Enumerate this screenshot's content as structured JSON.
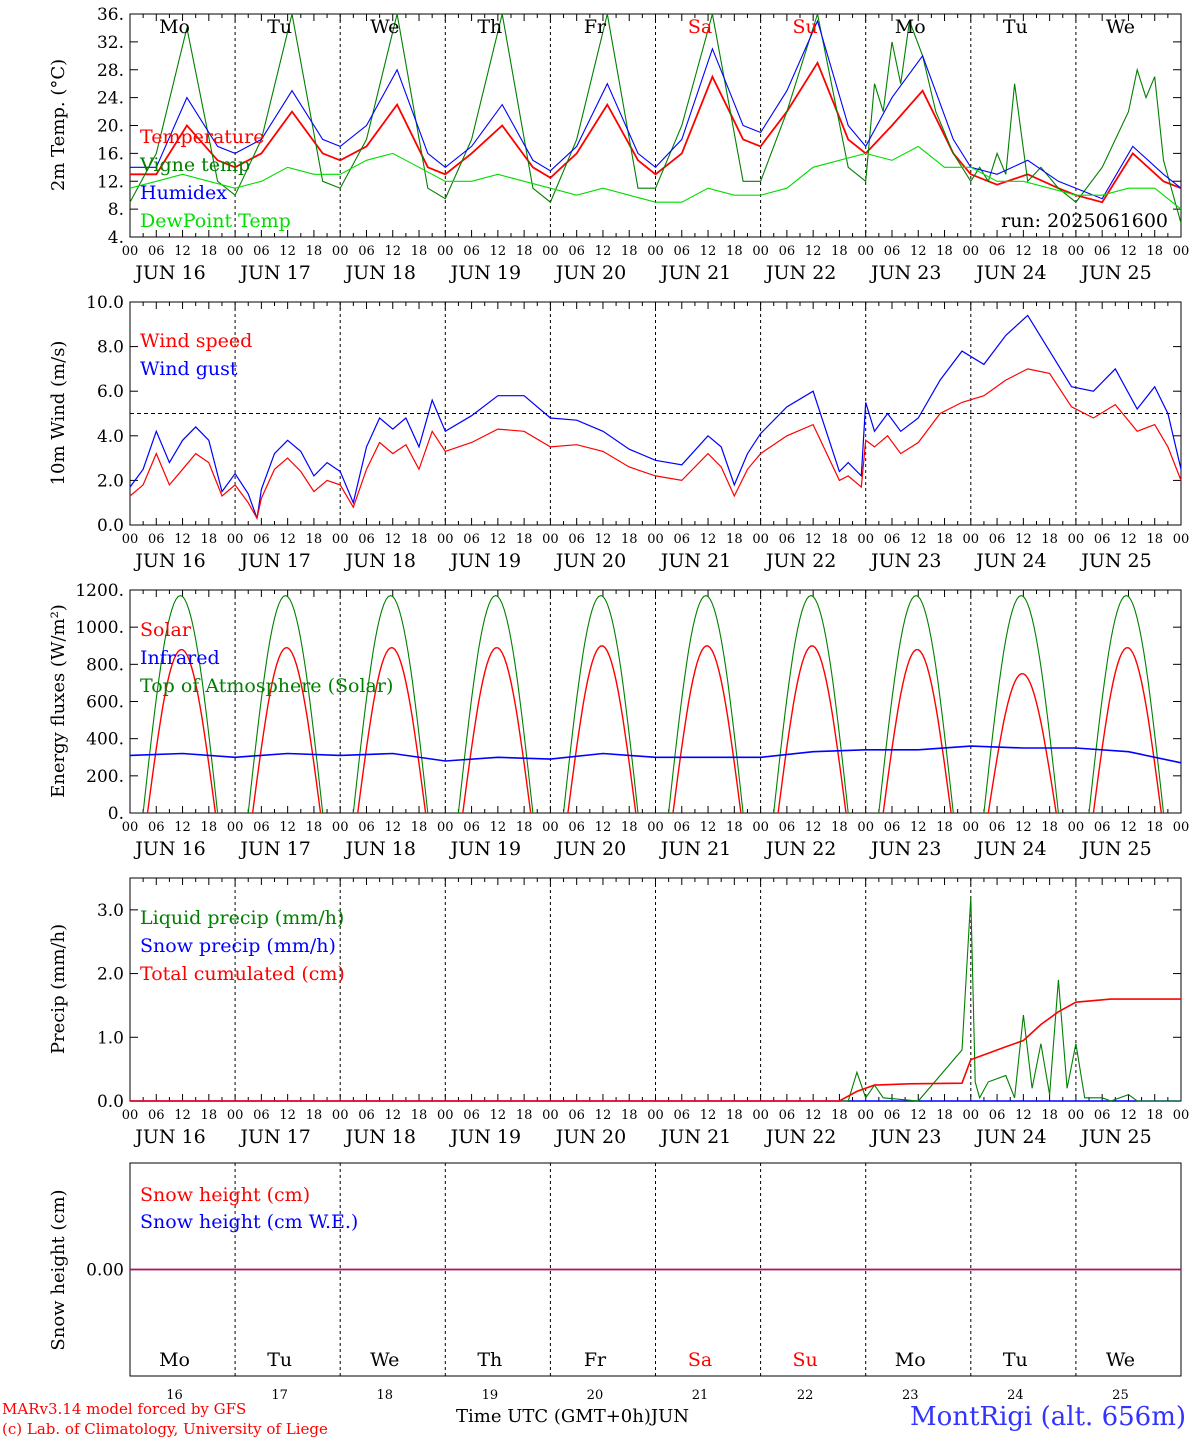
{
  "credits": {
    "line1": "MARv3.14 model forced by GFS",
    "line2": "(c) Lab. of Climatology, University of Liege",
    "xtitle": "Time UTC (GMT+0h)",
    "month": "JUN",
    "station": "MontRigi (alt. 656m)"
  },
  "days": {
    "weekday_labels": [
      "Mo",
      "Tu",
      "We",
      "Th",
      "Fr",
      "Sa",
      "Su",
      "Mo",
      "Tu",
      "We"
    ],
    "weekend_flags": [
      false,
      false,
      false,
      false,
      false,
      true,
      true,
      false,
      false,
      false
    ],
    "date_labels": [
      "JUN 16",
      "JUN 17",
      "JUN 18",
      "JUN 19",
      "JUN 20",
      "JUN 21",
      "JUN 22",
      "JUN 23",
      "JUN 24",
      "JUN 25"
    ],
    "day_numbers": [
      "16",
      "17",
      "18",
      "19",
      "20",
      "21",
      "22",
      "23",
      "24",
      "25"
    ],
    "hour_ticks": [
      "00",
      "06",
      "12",
      "18"
    ],
    "final_tick": "00"
  },
  "colors": {
    "red": "#ff0000",
    "blue": "#0000ff",
    "darkgreen": "#008000",
    "lightgreen": "#00dd00",
    "weekend": "#ff0000"
  },
  "chart_data": [
    {
      "type": "line",
      "id": "temp",
      "ylabel": "2m Temp. (°C)",
      "ylim": [
        4,
        36
      ],
      "yticks": [
        "36.",
        "32.",
        "28.",
        "24.",
        "20.",
        "16.",
        "12.",
        "8.",
        "4."
      ],
      "run_label": "run: 2025061600",
      "x_unit": "hours since JUN 16 00 UTC",
      "series": [
        {
          "name": "Temperature",
          "color": "red",
          "x": [
            0,
            6,
            13,
            20,
            24,
            30,
            37,
            44,
            48,
            54,
            61,
            68,
            72,
            78,
            85,
            92,
            96,
            102,
            109,
            116,
            120,
            126,
            133,
            140,
            144,
            150,
            157,
            164,
            168,
            174,
            181,
            188,
            192,
            198,
            205,
            212,
            216,
            222,
            229,
            236,
            240
          ],
          "y": [
            13,
            13,
            20,
            15,
            14,
            16,
            22,
            16,
            15,
            17,
            23,
            14,
            13,
            16,
            20,
            14,
            12.5,
            16,
            23,
            15,
            13,
            16,
            27,
            18,
            17,
            22,
            29,
            18,
            16,
            20,
            25,
            16,
            13,
            11.5,
            13,
            11,
            10,
            9,
            16,
            12,
            11
          ]
        },
        {
          "name": "Vigne temp",
          "color": "darkgreen",
          "x": [
            0,
            6,
            13,
            20,
            24,
            30,
            37,
            44,
            48,
            54,
            61,
            68,
            72,
            78,
            85,
            92,
            96,
            102,
            109,
            116,
            120,
            126,
            133,
            140,
            144,
            150,
            157,
            164,
            168,
            170,
            172,
            174,
            176,
            178,
            181,
            184,
            188,
            192,
            194,
            196,
            198,
            200,
            202,
            205,
            208,
            212,
            216,
            222,
            228,
            230,
            232,
            234,
            236,
            240
          ],
          "y": [
            9,
            16,
            34,
            12,
            10,
            18,
            36,
            12,
            11,
            18,
            36,
            11,
            9.5,
            18,
            36,
            11,
            9,
            18,
            36,
            11,
            11,
            20,
            36,
            12,
            12,
            22,
            36,
            14,
            12,
            26,
            22,
            32,
            26,
            35,
            30,
            22,
            16,
            12,
            14,
            12,
            16,
            13,
            26,
            12,
            14,
            11,
            9,
            14,
            22,
            28,
            24,
            27,
            15,
            6
          ]
        },
        {
          "name": "Humidex",
          "color": "blue",
          "x": [
            0,
            6,
            13,
            20,
            24,
            30,
            37,
            44,
            48,
            54,
            61,
            68,
            72,
            78,
            85,
            92,
            96,
            102,
            109,
            116,
            120,
            126,
            133,
            140,
            144,
            150,
            157,
            164,
            168,
            174,
            181,
            188,
            192,
            198,
            205,
            212,
            216,
            222,
            229,
            236,
            240
          ],
          "y": [
            14,
            14,
            24,
            17,
            16,
            18,
            25,
            18,
            17,
            20,
            28,
            16,
            14,
            17,
            23,
            15,
            13.5,
            17,
            26,
            16,
            14,
            18,
            31,
            20,
            19,
            25,
            35,
            20,
            17,
            24,
            30,
            18,
            14,
            13,
            15,
            12,
            11,
            9.5,
            17,
            13,
            11
          ]
        },
        {
          "name": "DewPoint Temp",
          "color": "lightgreen",
          "x": [
            0,
            6,
            12,
            18,
            24,
            30,
            36,
            42,
            48,
            54,
            60,
            66,
            72,
            78,
            84,
            90,
            96,
            102,
            108,
            114,
            120,
            126,
            132,
            138,
            144,
            150,
            156,
            162,
            168,
            174,
            180,
            186,
            192,
            198,
            204,
            210,
            216,
            222,
            228,
            234,
            240
          ],
          "y": [
            11,
            12,
            13,
            12,
            11,
            12,
            14,
            13,
            13,
            15,
            16,
            14,
            12,
            12,
            13,
            12,
            11,
            10,
            11,
            10,
            9,
            9,
            11,
            10,
            10,
            11,
            14,
            15,
            16,
            15,
            17,
            14,
            14,
            12,
            12,
            11,
            10,
            10,
            11,
            11,
            8
          ]
        }
      ]
    },
    {
      "type": "line",
      "id": "wind",
      "ylabel": "10m Wind (m/s)",
      "ylim": [
        0,
        10
      ],
      "yticks": [
        "10.0",
        "8.0",
        "6.0",
        "4.0",
        "2.0",
        "0.0"
      ],
      "reference_line": 5.0,
      "x_unit": "hours since JUN 16 00 UTC",
      "series": [
        {
          "name": "Wind speed",
          "color": "red",
          "x": [
            0,
            3,
            6,
            9,
            12,
            15,
            18,
            21,
            24,
            27,
            29,
            30,
            33,
            36,
            39,
            42,
            45,
            48,
            51,
            54,
            57,
            60,
            63,
            66,
            69,
            72,
            78,
            84,
            90,
            96,
            102,
            108,
            114,
            120,
            126,
            132,
            135,
            138,
            141,
            144,
            150,
            156,
            162,
            164,
            167,
            168,
            170,
            173,
            176,
            180,
            185,
            190,
            195,
            200,
            205,
            210,
            215,
            220,
            225,
            230,
            234,
            237,
            240
          ],
          "y": [
            1.3,
            1.8,
            3.2,
            1.8,
            2.5,
            3.2,
            2.8,
            1.3,
            1.8,
            1.0,
            0.3,
            1.2,
            2.5,
            3.0,
            2.4,
            1.5,
            2.0,
            1.8,
            0.8,
            2.5,
            3.7,
            3.2,
            3.6,
            2.5,
            4.2,
            3.3,
            3.7,
            4.3,
            4.2,
            3.5,
            3.6,
            3.3,
            2.6,
            2.2,
            2.0,
            3.2,
            2.6,
            1.3,
            2.5,
            3.2,
            4.0,
            4.5,
            2.0,
            2.2,
            1.7,
            3.8,
            3.5,
            4.0,
            3.2,
            3.7,
            5.0,
            5.5,
            5.8,
            6.5,
            7.0,
            6.8,
            5.3,
            4.8,
            5.4,
            4.2,
            4.5,
            3.5,
            2.0
          ]
        },
        {
          "name": "Wind gust",
          "color": "blue",
          "x": [
            0,
            3,
            6,
            9,
            12,
            15,
            18,
            21,
            24,
            27,
            29,
            30,
            33,
            36,
            39,
            42,
            45,
            48,
            51,
            54,
            57,
            60,
            63,
            66,
            69,
            72,
            78,
            84,
            90,
            96,
            102,
            108,
            114,
            120,
            126,
            132,
            135,
            138,
            141,
            144,
            150,
            156,
            162,
            164,
            167,
            168,
            170,
            173,
            176,
            180,
            185,
            190,
            195,
            200,
            205,
            210,
            215,
            220,
            225,
            230,
            234,
            237,
            240
          ],
          "y": [
            1.7,
            2.5,
            4.2,
            2.8,
            3.8,
            4.4,
            3.8,
            1.5,
            2.3,
            1.4,
            0.3,
            1.6,
            3.2,
            3.8,
            3.3,
            2.2,
            2.8,
            2.4,
            1.0,
            3.5,
            4.8,
            4.3,
            4.8,
            3.5,
            5.6,
            4.2,
            4.9,
            5.8,
            5.8,
            4.8,
            4.7,
            4.2,
            3.4,
            2.9,
            2.7,
            4.0,
            3.5,
            1.8,
            3.2,
            4.1,
            5.3,
            6.0,
            2.4,
            2.8,
            2.2,
            5.5,
            4.2,
            5.0,
            4.2,
            4.8,
            6.5,
            7.8,
            7.2,
            8.5,
            9.4,
            7.8,
            6.2,
            6.0,
            7.0,
            5.2,
            6.2,
            5.0,
            2.5
          ]
        }
      ]
    },
    {
      "type": "line",
      "id": "energy",
      "ylabel": "Energy fluxes (W/m²)",
      "ylim": [
        0,
        1200
      ],
      "yticks": [
        "1200.",
        "1000.",
        "800.",
        "600.",
        "400.",
        "200.",
        "0."
      ],
      "x_unit": "hours since JUN 16 00 UTC",
      "series": [
        {
          "name": "Solar",
          "color": "red",
          "daily_peaks": [
            880,
            890,
            890,
            890,
            900,
            900,
            900,
            880,
            750,
            890
          ]
        },
        {
          "name": "Infrared",
          "color": "blue",
          "x": [
            0,
            12,
            24,
            36,
            48,
            60,
            72,
            84,
            96,
            108,
            120,
            132,
            144,
            156,
            168,
            180,
            192,
            204,
            216,
            228,
            240
          ],
          "y": [
            310,
            320,
            300,
            320,
            310,
            320,
            280,
            300,
            290,
            320,
            300,
            300,
            300,
            330,
            340,
            340,
            360,
            350,
            350,
            330,
            270
          ]
        },
        {
          "name": "Top of Atmosphere (Solar)",
          "color": "darkgreen",
          "daily_peak": 1170
        }
      ]
    },
    {
      "type": "line",
      "id": "precip",
      "ylabel": "Precip (mm/h)",
      "ylim": [
        0,
        3.5
      ],
      "yticks": [
        "3.0",
        "2.0",
        "1.0",
        "0.0"
      ],
      "x_unit": "hours since JUN 16 00 UTC",
      "series": [
        {
          "name": "Liquid precip (mm/h)",
          "color": "darkgreen",
          "x": [
            0,
            164,
            166,
            168,
            170,
            172,
            180,
            190,
            192,
            193,
            194,
            196,
            200,
            202,
            204,
            206,
            208,
            210,
            212,
            214,
            216,
            218,
            220,
            222,
            224,
            228,
            230,
            240
          ],
          "y": [
            0,
            0,
            0.45,
            0.05,
            0.25,
            0.05,
            0,
            0.8,
            3.2,
            0.3,
            0.05,
            0.3,
            0.4,
            0.05,
            1.35,
            0.2,
            0.9,
            0.1,
            1.9,
            0.2,
            0.9,
            0.05,
            0.05,
            0.05,
            0,
            0.1,
            0,
            0
          ]
        },
        {
          "name": "Snow precip (mm/h)",
          "color": "blue",
          "x": [
            0,
            240
          ],
          "y": [
            0,
            0
          ]
        },
        {
          "name": "Total cumulated (cm)",
          "color": "red",
          "x": [
            0,
            162,
            166,
            170,
            178,
            190,
            192,
            196,
            200,
            204,
            208,
            212,
            216,
            224,
            240
          ],
          "y": [
            0,
            0,
            0.15,
            0.25,
            0.27,
            0.28,
            0.65,
            0.75,
            0.85,
            0.95,
            1.2,
            1.4,
            1.55,
            1.6,
            1.6
          ]
        }
      ]
    },
    {
      "type": "line",
      "id": "snow",
      "ylabel": "Snow height (cm)",
      "yticks": [
        "0.00"
      ],
      "x_unit": "hours since JUN 16 00 UTC",
      "series": [
        {
          "name": "Snow height (cm)",
          "color": "red",
          "x": [
            0,
            240
          ],
          "y": [
            0,
            0
          ]
        },
        {
          "name": "Snow height (cm W.E.)",
          "color": "blue",
          "x": [
            0,
            240
          ],
          "y": [
            0,
            0
          ]
        }
      ]
    }
  ]
}
